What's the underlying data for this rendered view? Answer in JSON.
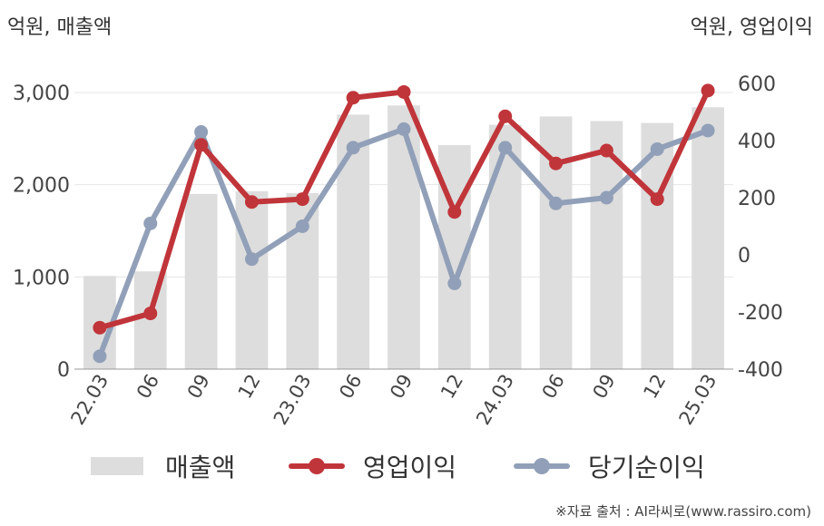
{
  "unit_left": "억원, 매출액",
  "unit_right": "억원, 영업이익",
  "source": "※자료 출처 : AI라씨로(www.rassiro.com)",
  "colors": {
    "bar": "#dddddd",
    "operating": "#c0353a",
    "net": "#91a0b8",
    "grid": "#e6e6e6",
    "axis": "#999999"
  },
  "chart_data": {
    "type": "bar+line",
    "categories": [
      "22.03",
      "06",
      "09",
      "12",
      "23.03",
      "06",
      "09",
      "12",
      "24.03",
      "06",
      "09",
      "12",
      "25.03"
    ],
    "left_axis": {
      "ylim": [
        0,
        3000
      ],
      "ticks": [
        "0",
        "1,000",
        "2,000",
        "3,000"
      ],
      "tick_values": [
        0,
        1000,
        2000,
        3000
      ]
    },
    "right_axis": {
      "ylim": [
        -400,
        600
      ],
      "ticks": [
        "-400",
        "-200",
        "0",
        "200",
        "400",
        "600"
      ],
      "tick_values": [
        -400,
        -200,
        0,
        200,
        400,
        600
      ]
    },
    "series": [
      {
        "name": "매출액",
        "type": "bar",
        "axis": "left",
        "values": [
          1010,
          1060,
          1900,
          1930,
          1910,
          2760,
          2860,
          2430,
          2650,
          2740,
          2690,
          2670,
          2840
        ]
      },
      {
        "name": "영업이익",
        "type": "line",
        "axis": "right",
        "values": [
          -255,
          -205,
          385,
          185,
          195,
          550,
          570,
          150,
          485,
          320,
          365,
          195,
          575
        ]
      },
      {
        "name": "당기순이익",
        "type": "line",
        "axis": "right",
        "values": [
          -355,
          110,
          430,
          -15,
          100,
          375,
          440,
          -100,
          375,
          180,
          200,
          370,
          435
        ]
      }
    ]
  }
}
